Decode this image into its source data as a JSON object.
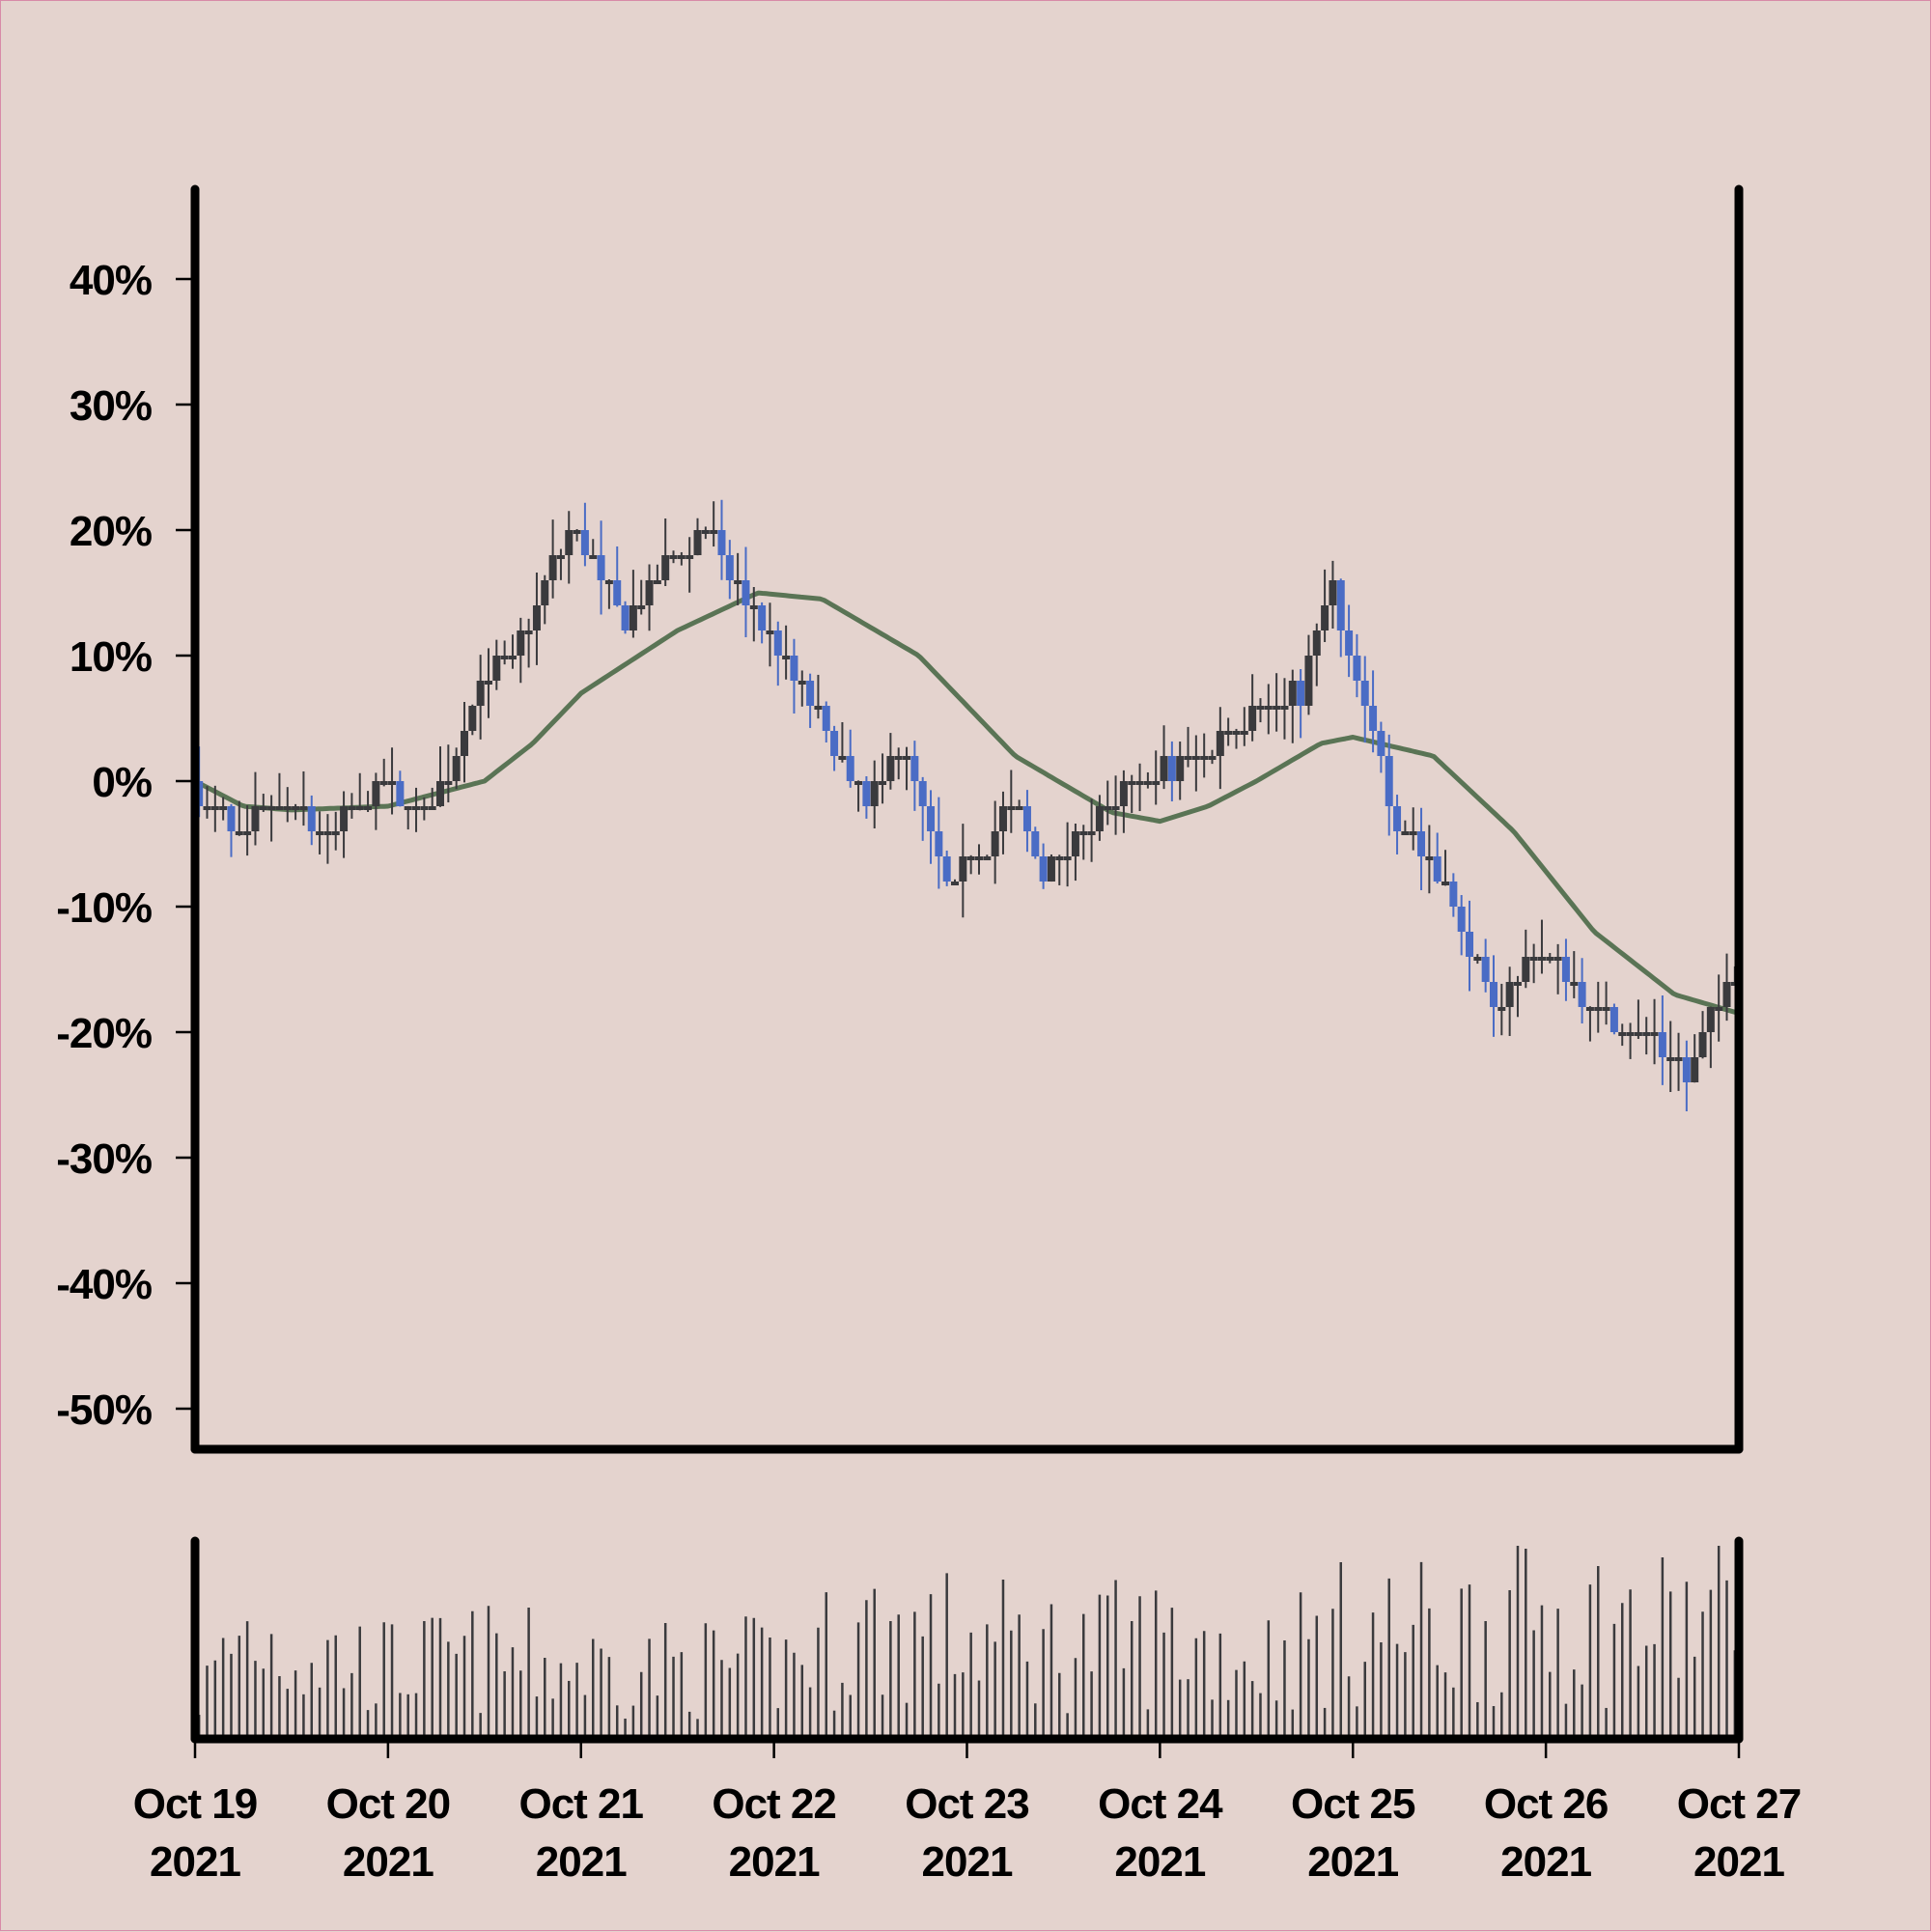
{
  "colors": {
    "background": "#e4d3ce",
    "up": "#3a3a3d",
    "down": "#4a6cc5",
    "moving_average": "#5a7455",
    "volume": "#3a3a3d",
    "axis": "#000000"
  },
  "chart_data": {
    "type": "candlestick",
    "title": "",
    "xlabel": "",
    "ylabel": "",
    "y_unit": "%",
    "ylim": [
      -50,
      45
    ],
    "y_ticks": [
      "40%",
      "30%",
      "20%",
      "10%",
      "0%",
      "-10%",
      "-20%",
      "-30%",
      "-40%",
      "-50%"
    ],
    "y_tick_values": [
      40,
      30,
      20,
      10,
      0,
      -10,
      -20,
      -30,
      -40,
      -50
    ],
    "x_start": "2021-10-19",
    "x_end": "2021-10-27",
    "x_ticks": [
      {
        "date": "2021-10-19",
        "line1": "Oct 19",
        "line2": "2021"
      },
      {
        "date": "2021-10-20",
        "line1": "Oct 20",
        "line2": "2021"
      },
      {
        "date": "2021-10-21",
        "line1": "Oct 21",
        "line2": "2021"
      },
      {
        "date": "2021-10-22",
        "line1": "Oct 22",
        "line2": "2021"
      },
      {
        "date": "2021-10-23",
        "line1": "Oct 23",
        "line2": "2021"
      },
      {
        "date": "2021-10-24",
        "line1": "Oct 24",
        "line2": "2021"
      },
      {
        "date": "2021-10-25",
        "line1": "Oct 25",
        "line2": "2021"
      },
      {
        "date": "2021-10-26",
        "line1": "Oct 26",
        "line2": "2021"
      },
      {
        "date": "2021-10-27",
        "line1": "Oct 27",
        "line2": "2021"
      }
    ],
    "close_path": [
      [
        "2021-10-19 00:00",
        0
      ],
      [
        "2021-10-19 06:00",
        -4
      ],
      [
        "2021-10-19 12:00",
        -2
      ],
      [
        "2021-10-19 18:00",
        -4
      ],
      [
        "2021-10-20 00:00",
        0
      ],
      [
        "2021-10-20 04:00",
        -3
      ],
      [
        "2021-10-20 08:00",
        0
      ],
      [
        "2021-10-20 12:00",
        8
      ],
      [
        "2021-10-20 16:00",
        10
      ],
      [
        "2021-10-20 20:00",
        16
      ],
      [
        "2021-10-21 00:00",
        20
      ],
      [
        "2021-10-21 06:00",
        12
      ],
      [
        "2021-10-21 10:00",
        16
      ],
      [
        "2021-10-21 16:00",
        20
      ],
      [
        "2021-10-22 00:00",
        11
      ],
      [
        "2021-10-22 06:00",
        5
      ],
      [
        "2021-10-22 12:00",
        -2
      ],
      [
        "2021-10-22 16:00",
        3
      ],
      [
        "2021-10-22 22:00",
        -9
      ],
      [
        "2021-10-23 06:00",
        -2
      ],
      [
        "2021-10-23 10:00",
        -7
      ],
      [
        "2021-10-23 16:00",
        -3
      ],
      [
        "2021-10-23 22:00",
        0
      ],
      [
        "2021-10-24 06:00",
        2
      ],
      [
        "2021-10-24 12:00",
        6
      ],
      [
        "2021-10-24 18:00",
        7
      ],
      [
        "2021-10-24 22:00",
        15
      ],
      [
        "2021-10-25 06:00",
        -3
      ],
      [
        "2021-10-25 12:00",
        -8
      ],
      [
        "2021-10-25 18:00",
        -18
      ],
      [
        "2021-10-26 00:00",
        -13
      ],
      [
        "2021-10-26 06:00",
        -18
      ],
      [
        "2021-10-26 12:00",
        -20
      ],
      [
        "2021-10-26 18:00",
        -23
      ],
      [
        "2021-10-27 00:00",
        -15
      ]
    ],
    "moving_average": [
      [
        "2021-10-19 00:00",
        0
      ],
      [
        "2021-10-19 06:00",
        -2
      ],
      [
        "2021-10-19 12:00",
        -2.3
      ],
      [
        "2021-10-20 00:00",
        -2
      ],
      [
        "2021-10-20 06:00",
        -1
      ],
      [
        "2021-10-20 12:00",
        0
      ],
      [
        "2021-10-20 18:00",
        3
      ],
      [
        "2021-10-21 00:00",
        7
      ],
      [
        "2021-10-21 12:00",
        12
      ],
      [
        "2021-10-21 22:00",
        15
      ],
      [
        "2021-10-22 06:00",
        14.5
      ],
      [
        "2021-10-22 18:00",
        10
      ],
      [
        "2021-10-23 06:00",
        2
      ],
      [
        "2021-10-23 18:00",
        -2.5
      ],
      [
        "2021-10-24 00:00",
        -3.2
      ],
      [
        "2021-10-24 06:00",
        -2
      ],
      [
        "2021-10-24 12:00",
        0
      ],
      [
        "2021-10-24 20:00",
        3
      ],
      [
        "2021-10-25 00:00",
        3.5
      ],
      [
        "2021-10-25 10:00",
        2
      ],
      [
        "2021-10-25 20:00",
        -4
      ],
      [
        "2021-10-26 06:00",
        -12
      ],
      [
        "2021-10-26 16:00",
        -17
      ],
      [
        "2021-10-27 00:00",
        -18.5
      ]
    ],
    "volume_profile": [
      [
        "2021-10-19 00:00",
        0.2
      ],
      [
        "2021-10-19 06:00",
        0.6
      ],
      [
        "2021-10-19 12:00",
        0.5
      ],
      [
        "2021-10-20 00:00",
        0.4
      ],
      [
        "2021-10-20 12:00",
        0.45
      ],
      [
        "2021-10-21 00:00",
        0.4
      ],
      [
        "2021-10-21 12:00",
        0.4
      ],
      [
        "2021-10-22 00:00",
        0.4
      ],
      [
        "2021-10-22 12:00",
        0.6
      ],
      [
        "2021-10-23 00:00",
        0.55
      ],
      [
        "2021-10-23 12:00",
        0.5
      ],
      [
        "2021-10-24 00:00",
        0.55
      ],
      [
        "2021-10-24 12:00",
        0.45
      ],
      [
        "2021-10-25 00:00",
        0.6
      ],
      [
        "2021-10-25 12:00",
        0.6
      ],
      [
        "2021-10-26 00:00",
        0.7
      ],
      [
        "2021-10-26 12:00",
        0.6
      ],
      [
        "2021-10-27 00:00",
        0.7
      ]
    ]
  }
}
